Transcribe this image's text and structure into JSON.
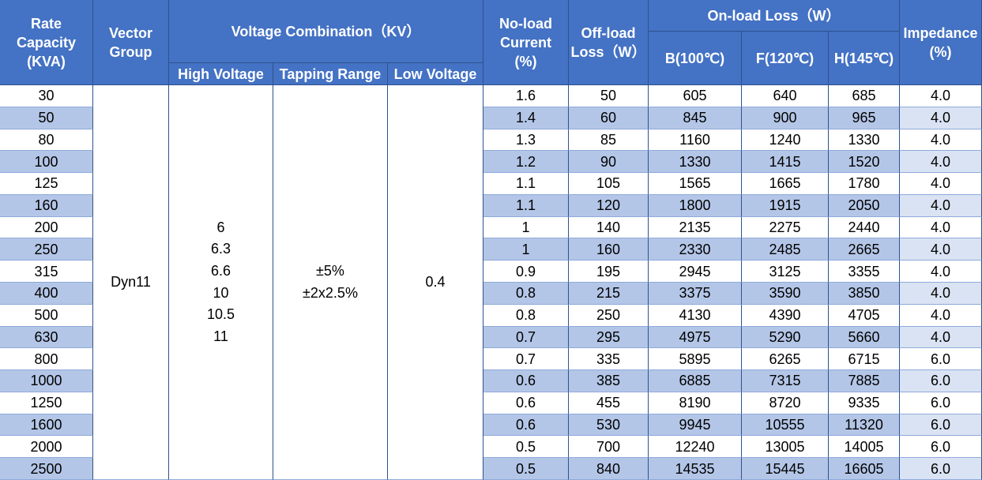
{
  "header": {
    "rate_capacity": [
      "Rate",
      "Capacity",
      "(KVA)"
    ],
    "vector_group": [
      "Vector",
      "Group"
    ],
    "voltage_combination": "Voltage Combination（KV）",
    "high_voltage": "High Voltage",
    "tapping_range": "Tapping Range",
    "low_voltage": "Low Voltage",
    "no_load_current": [
      "No-load",
      "Current",
      "(%)"
    ],
    "off_load_loss": [
      "Off-load",
      "Loss（W）"
    ],
    "on_load_loss": "On-load Loss（W）",
    "b": "B(100℃)",
    "f": "F(120℃)",
    "h": "H(145℃)",
    "impedance": [
      "Impedance",
      "(%)"
    ]
  },
  "merged": {
    "vector_group": "Dyn11",
    "high_voltage": [
      "6",
      "6.3",
      "6.6",
      "10",
      "10.5",
      "11"
    ],
    "tapping_range": [
      "±5%",
      "±2x2.5%"
    ],
    "low_voltage": "0.4"
  },
  "rows": [
    [
      "30",
      "1.6",
      "50",
      "605",
      "640",
      "685",
      "4.0"
    ],
    [
      "50",
      "1.4",
      "60",
      "845",
      "900",
      "965",
      "4.0"
    ],
    [
      "80",
      "1.3",
      "85",
      "1160",
      "1240",
      "1330",
      "4.0"
    ],
    [
      "100",
      "1.2",
      "90",
      "1330",
      "1415",
      "1520",
      "4.0"
    ],
    [
      "125",
      "1.1",
      "105",
      "1565",
      "1665",
      "1780",
      "4.0"
    ],
    [
      "160",
      "1.1",
      "120",
      "1800",
      "1915",
      "2050",
      "4.0"
    ],
    [
      "200",
      "1",
      "140",
      "2135",
      "2275",
      "2440",
      "4.0"
    ],
    [
      "250",
      "1",
      "160",
      "2330",
      "2485",
      "2665",
      "4.0"
    ],
    [
      "315",
      "0.9",
      "195",
      "2945",
      "3125",
      "3355",
      "4.0"
    ],
    [
      "400",
      "0.8",
      "215",
      "3375",
      "3590",
      "3850",
      "4.0"
    ],
    [
      "500",
      "0.8",
      "250",
      "4130",
      "4390",
      "4705",
      "4.0"
    ],
    [
      "630",
      "0.7",
      "295",
      "4975",
      "5290",
      "5660",
      "4.0"
    ],
    [
      "800",
      "0.7",
      "335",
      "5895",
      "6265",
      "6715",
      "6.0"
    ],
    [
      "1000",
      "0.6",
      "385",
      "6885",
      "7315",
      "7885",
      "6.0"
    ],
    [
      "1250",
      "0.6",
      "455",
      "8190",
      "8720",
      "9335",
      "6.0"
    ],
    [
      "1600",
      "0.6",
      "530",
      "9945",
      "10555",
      "11320",
      "6.0"
    ],
    [
      "2000",
      "0.5",
      "700",
      "12240",
      "13005",
      "14005",
      "6.0"
    ],
    [
      "2500",
      "0.5",
      "840",
      "14535",
      "15445",
      "16605",
      "6.0"
    ]
  ]
}
